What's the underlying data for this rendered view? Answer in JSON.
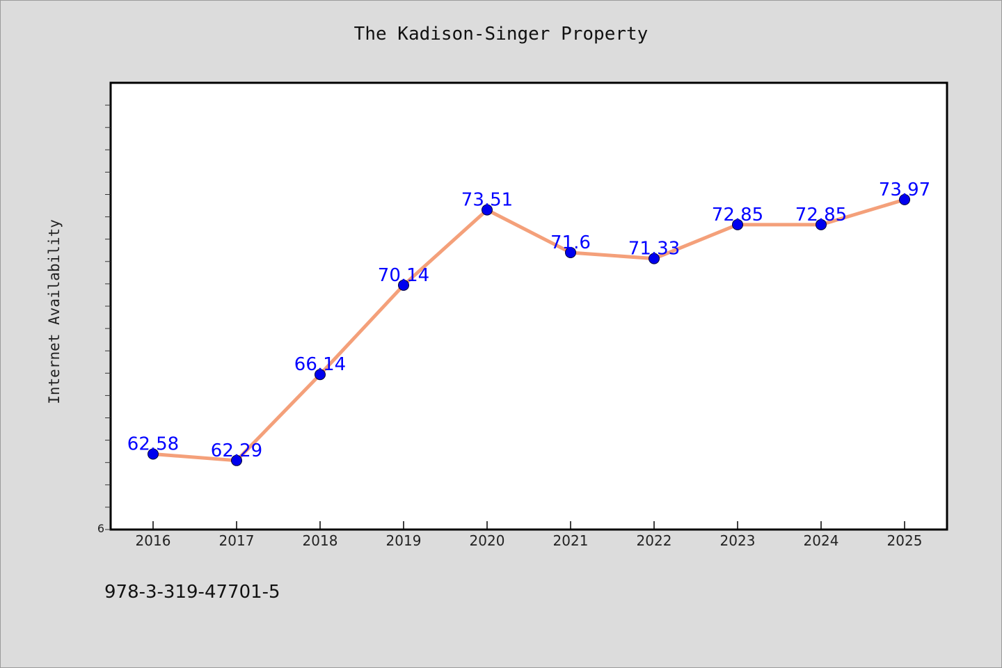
{
  "chart_data": {
    "type": "line",
    "title": "The Kadison-Singer Property",
    "ylabel": "Internet Availability",
    "xlabel": "",
    "y_tick_label": "6",
    "x": [
      "2016",
      "2017",
      "2018",
      "2019",
      "2020",
      "2021",
      "2022",
      "2023",
      "2024",
      "2025"
    ],
    "series": [
      {
        "values": [
          62.58,
          62.29,
          66.14,
          70.14,
          73.51,
          71.6,
          71.33,
          72.85,
          72.85,
          73.97
        ],
        "labels": [
          "62.58",
          "62.29",
          "66.14",
          "70.14",
          "73.51",
          "71.6",
          "71.33",
          "72.85",
          "72.85",
          "73.97"
        ],
        "line_color": "#f4a07a",
        "marker_color": "#0000ee",
        "label_color": "#0000ff"
      }
    ],
    "ylim": [
      59.2,
      79.2
    ],
    "grid": false,
    "legend": "none"
  },
  "footer": {
    "isbn": "978-3-319-47701-5"
  }
}
